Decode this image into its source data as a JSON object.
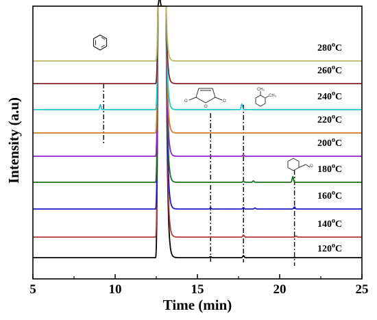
{
  "chart_data": {
    "type": "line",
    "xlabel": "Time (min)",
    "ylabel": "Intensity (a.u)",
    "xlim": [
      5,
      25
    ],
    "x_ticks": [
      "5",
      "10",
      "15",
      "20",
      "25"
    ],
    "grid": false,
    "legend": "none",
    "series": [
      {
        "label": "120°C",
        "label_main": "120",
        "label_sup": "o",
        "label_unit": "C",
        "color": "#000000",
        "baseline_index": 0,
        "peaks": [
          {
            "x": 12.7,
            "h": 14
          },
          {
            "x": 15.8,
            "h": 1.5
          },
          {
            "x": 17.8,
            "h": 3
          }
        ]
      },
      {
        "label": "140°C",
        "label_main": "140",
        "label_sup": "o",
        "label_unit": "C",
        "color": "#b03a3a",
        "baseline_index": 1,
        "peaks": [
          {
            "x": 17.8,
            "h": 3
          },
          {
            "x": 21.0,
            "h": 1.5
          }
        ]
      },
      {
        "label": "160°C",
        "label_main": "160",
        "label_sup": "o",
        "label_unit": "C",
        "color": "#1c1cc8",
        "baseline_index": 2,
        "peaks": [
          {
            "x": 15.8,
            "h": 1.5
          },
          {
            "x": 17.8,
            "h": 2
          },
          {
            "x": 18.5,
            "h": 1.5
          },
          {
            "x": 20.9,
            "h": 3
          }
        ]
      },
      {
        "label": "180°C",
        "label_main": "180",
        "label_sup": "o",
        "label_unit": "C",
        "color": "#1f6e1f",
        "baseline_index": 3,
        "peaks": [
          {
            "x": 17.8,
            "h": 1.5
          },
          {
            "x": 18.4,
            "h": 2
          },
          {
            "x": 20.8,
            "h": 8
          }
        ]
      },
      {
        "label": "200°C",
        "label_main": "200",
        "label_sup": "o",
        "label_unit": "C",
        "color": "#9020d0",
        "baseline_index": 4,
        "peaks": [
          {
            "x": 17.8,
            "h": 2
          }
        ]
      },
      {
        "label": "220°C",
        "label_main": "220",
        "label_sup": "o",
        "label_unit": "C",
        "color": "#c8801e",
        "baseline_index": 5,
        "peaks": []
      },
      {
        "label": "240°C",
        "label_main": "240",
        "label_sup": "o",
        "label_unit": "C",
        "color": "#20c8c8",
        "baseline_index": 6,
        "peaks": [
          {
            "x": 9.1,
            "h": 7
          },
          {
            "x": 17.7,
            "h": 8
          }
        ]
      },
      {
        "label": "260°C",
        "label_main": "260",
        "label_sup": "o",
        "label_unit": "C",
        "color": "#7a2828",
        "baseline_index": 7,
        "peaks": []
      },
      {
        "label": "280°C",
        "label_main": "280",
        "label_sup": "o",
        "label_unit": "C",
        "color": "#b8b860",
        "baseline_index": 8,
        "peaks": []
      }
    ],
    "main_peak": {
      "x_front": 12.6,
      "x_back": 13.1
    },
    "annotations": [
      {
        "name": "benzene",
        "x": 9.3
      },
      {
        "name": "maleic-anhydride",
        "x": 15.8
      },
      {
        "name": "o-xylene",
        "x": 17.8
      },
      {
        "name": "benzaldehyde",
        "x": 20.9
      }
    ],
    "chem_labels": {
      "ch3_a": "CH₃",
      "ch3_b": "CH₃",
      "o1": "O",
      "o2": "O",
      "o3": "O",
      "o4": "O"
    }
  }
}
